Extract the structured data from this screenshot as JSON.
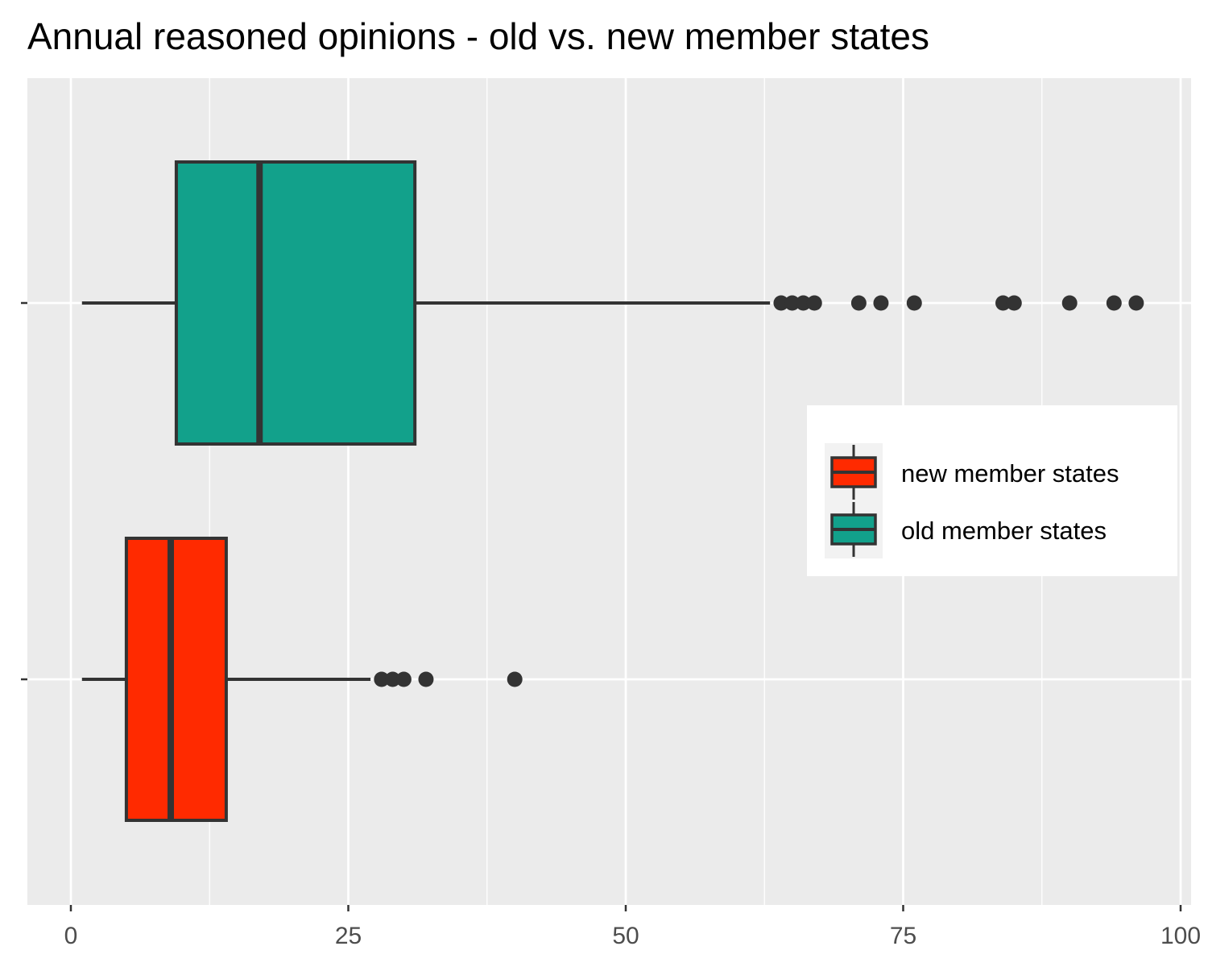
{
  "chart_data": {
    "type": "boxplot",
    "title": "Annual reasoned opinions - old vs. new member states",
    "xlabel": "",
    "ylabel": "",
    "xlim": [
      -4,
      101
    ],
    "x_ticks": [
      0,
      25,
      50,
      75,
      100
    ],
    "orientation": "horizontal",
    "grid": true,
    "legend_position": "right",
    "series": [
      {
        "name": "old member states",
        "color": "#12a18b",
        "whisker_low": 1,
        "q1": 9.5,
        "median": 17,
        "q3": 31,
        "whisker_high": 63,
        "outliers": [
          64,
          65,
          66,
          67,
          71,
          73,
          76,
          84,
          85,
          90,
          94,
          96
        ]
      },
      {
        "name": "new member states",
        "color": "#ff2a00",
        "whisker_low": 1,
        "q1": 5,
        "median": 9,
        "q3": 14,
        "whisker_high": 27,
        "outliers": [
          28,
          29,
          30,
          32,
          40
        ]
      }
    ],
    "legend": [
      {
        "label": "new member states",
        "color": "#ff2a00"
      },
      {
        "label": "old member states",
        "color": "#12a18b"
      }
    ]
  }
}
